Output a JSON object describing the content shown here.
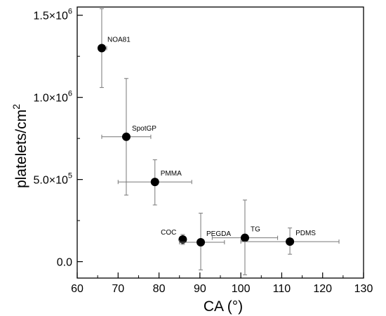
{
  "chart_data": {
    "type": "scatter",
    "xlabel": "CA (°)",
    "ylabel": "platelets/cm",
    "ylabel_sup": "2",
    "xlim": [
      60,
      130
    ],
    "ylim": [
      -100000,
      1550000
    ],
    "xticks": [
      60,
      70,
      80,
      90,
      100,
      110,
      120,
      130
    ],
    "yticks": [
      {
        "value": 0,
        "mantissa": "0.0",
        "exponent": ""
      },
      {
        "value": 500000,
        "mantissa": "5.0×10",
        "exponent": "5"
      },
      {
        "value": 1000000,
        "mantissa": "1.0×10",
        "exponent": "6"
      },
      {
        "value": 1500000,
        "mantissa": "1.5×10",
        "exponent": "6"
      }
    ],
    "grid": false,
    "points": [
      {
        "label": "NOA81",
        "x": 66,
        "y": 1300000,
        "xmin": 65.2,
        "xmax": 67.2,
        "ymin": 1060000,
        "ymax": 1540000
      },
      {
        "label": "SpotGP",
        "x": 72,
        "y": 760000,
        "xmin": 66,
        "xmax": 78,
        "ymin": 405000,
        "ymax": 1115000
      },
      {
        "label": "PMMA",
        "x": 79,
        "y": 485000,
        "xmin": 70,
        "xmax": 88,
        "ymin": 345000,
        "ymax": 620000
      },
      {
        "label": "COC",
        "x": 85.8,
        "y": 135000,
        "xmin": 85,
        "xmax": 86.5,
        "ymin": 105000,
        "ymax": 165000
      },
      {
        "label": "PEGDA",
        "x": 90.2,
        "y": 118000,
        "xmin": 85,
        "xmax": 96,
        "ymin": -50000,
        "ymax": 295000
      },
      {
        "label": "TG",
        "x": 101,
        "y": 145000,
        "xmin": 93,
        "xmax": 109,
        "ymin": -80000,
        "ymax": 375000
      },
      {
        "label": "PDMS",
        "x": 112,
        "y": 122000,
        "xmin": 100,
        "xmax": 124,
        "ymin": 45000,
        "ymax": 205000
      }
    ]
  }
}
